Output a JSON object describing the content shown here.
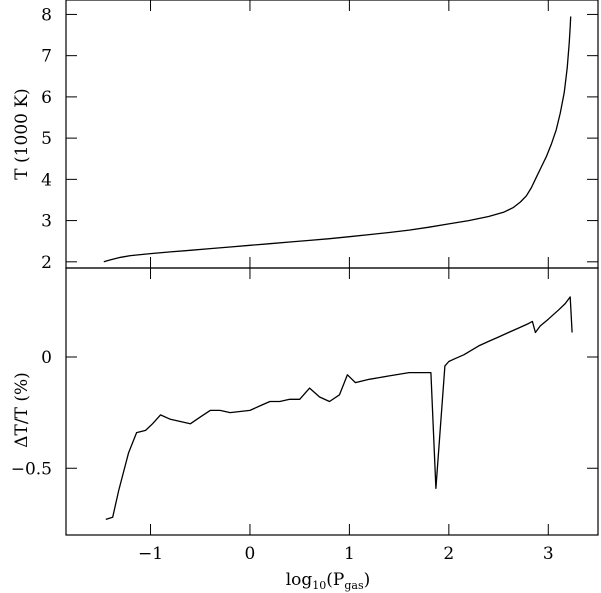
{
  "chart_data": [
    {
      "type": "line",
      "panel": "top",
      "ylabel": "T (1000 K)",
      "xlim": [
        -1.85,
        3.5
      ],
      "ylim": [
        1.85,
        8.35
      ],
      "x_ticks": [
        -1,
        0,
        1,
        2,
        3
      ],
      "y_ticks": [
        2,
        3,
        4,
        5,
        6,
        7,
        8
      ],
      "y_tick_labels": [
        "2",
        "3",
        "4",
        "5",
        "6",
        "7",
        "8"
      ],
      "series": [
        {
          "x": [
            -1.47,
            -1.4,
            -1.3,
            -1.2,
            -1.0,
            -0.8,
            -0.6,
            -0.4,
            -0.2,
            0.0,
            0.2,
            0.4,
            0.6,
            0.8,
            1.0,
            1.2,
            1.4,
            1.6,
            1.8,
            2.0,
            2.2,
            2.4,
            2.55,
            2.65,
            2.72,
            2.78,
            2.83,
            2.88,
            2.93,
            2.98,
            3.03,
            3.08,
            3.12,
            3.16,
            3.19,
            3.21,
            3.22,
            3.225
          ],
          "y": [
            2.0,
            2.05,
            2.11,
            2.15,
            2.2,
            2.24,
            2.28,
            2.32,
            2.36,
            2.4,
            2.44,
            2.48,
            2.52,
            2.56,
            2.61,
            2.66,
            2.71,
            2.77,
            2.84,
            2.92,
            3.0,
            3.1,
            3.2,
            3.32,
            3.45,
            3.6,
            3.8,
            4.05,
            4.3,
            4.55,
            4.85,
            5.2,
            5.6,
            6.1,
            6.7,
            7.3,
            7.7,
            7.95
          ]
        }
      ]
    },
    {
      "type": "line",
      "panel": "bottom",
      "xlabel_base": "log",
      "xlabel_sub1": "10",
      "xlabel_mid": "(P",
      "xlabel_sub2": "gas",
      "xlabel_end": ")",
      "ylabel": "ΔT/T (%)",
      "xlim": [
        -1.85,
        3.5
      ],
      "ylim": [
        -0.8,
        0.4
      ],
      "x_ticks": [
        -1,
        0,
        1,
        2,
        3
      ],
      "x_tick_labels": [
        "−1",
        "0",
        "1",
        "2",
        "3"
      ],
      "y_ticks": [
        -0.5,
        0
      ],
      "y_tick_labels": [
        "−0.5",
        "0"
      ],
      "series": [
        {
          "x": [
            -1.45,
            -1.38,
            -1.32,
            -1.22,
            -1.14,
            -1.05,
            -0.98,
            -0.9,
            -0.8,
            -0.6,
            -0.5,
            -0.4,
            -0.3,
            -0.2,
            -0.1,
            0.0,
            0.1,
            0.2,
            0.3,
            0.4,
            0.5,
            0.6,
            0.7,
            0.8,
            0.9,
            0.98,
            1.06,
            1.2,
            1.4,
            1.6,
            1.78,
            1.82,
            1.87,
            1.96,
            2.0,
            2.05,
            2.15,
            2.3,
            2.4,
            2.5,
            2.6,
            2.7,
            2.8,
            2.84,
            2.87,
            2.92,
            3.0,
            3.05,
            3.1,
            3.17,
            3.22,
            3.24
          ],
          "y": [
            -0.73,
            -0.72,
            -0.6,
            -0.43,
            -0.34,
            -0.33,
            -0.3,
            -0.26,
            -0.28,
            -0.3,
            -0.27,
            -0.24,
            -0.24,
            -0.25,
            -0.245,
            -0.24,
            -0.22,
            -0.2,
            -0.2,
            -0.19,
            -0.19,
            -0.14,
            -0.18,
            -0.2,
            -0.17,
            -0.08,
            -0.115,
            -0.1,
            -0.085,
            -0.07,
            -0.07,
            -0.07,
            -0.59,
            -0.04,
            -0.02,
            -0.01,
            0.01,
            0.05,
            0.07,
            0.09,
            0.11,
            0.13,
            0.15,
            0.16,
            0.11,
            0.14,
            0.17,
            0.19,
            0.21,
            0.24,
            0.27,
            0.11
          ]
        }
      ]
    }
  ]
}
